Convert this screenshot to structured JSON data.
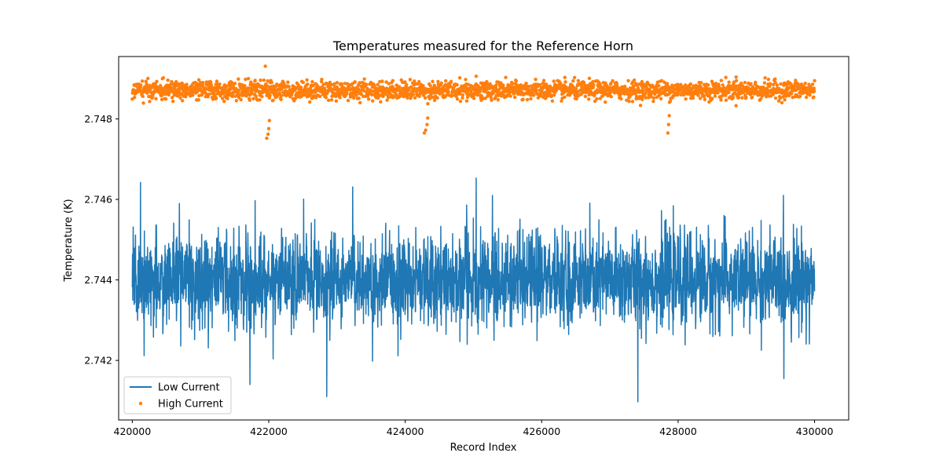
{
  "chart_data": {
    "type": "line",
    "title": "Temperatures measured for the Reference Horn",
    "xlabel": "Record Index",
    "ylabel": "Temperature (K)",
    "xlim": [
      419800,
      430500
    ],
    "ylim": [
      2.74052,
      2.74955
    ],
    "x_ticks": [
      420000,
      422000,
      424000,
      426000,
      428000,
      430000
    ],
    "x_tick_labels": [
      "420000",
      "422000",
      "424000",
      "426000",
      "428000",
      "430000"
    ],
    "y_ticks": [
      2.742,
      2.744,
      2.746,
      2.748
    ],
    "y_tick_labels": [
      "2.742",
      "2.744",
      "2.746",
      "2.748"
    ],
    "grid": false,
    "legend_position": "lower-left",
    "series": [
      {
        "name": "Low Current",
        "style": "line",
        "color": "#1f77b4",
        "x_start": 420000,
        "x_end": 430000,
        "mean": 2.744,
        "typical_min": 2.7428,
        "typical_max": 2.7454,
        "extreme_min": 2.741,
        "extreme_max": 2.7465,
        "notable_points": [
          {
            "x": 420120,
            "y": 2.74642
          },
          {
            "x": 421800,
            "y": 2.74597
          },
          {
            "x": 422850,
            "y": 2.7411
          },
          {
            "x": 423230,
            "y": 2.74631
          },
          {
            "x": 424900,
            "y": 2.74586
          },
          {
            "x": 425040,
            "y": 2.74653
          },
          {
            "x": 427410,
            "y": 2.74097
          },
          {
            "x": 429550,
            "y": 2.74155
          }
        ]
      },
      {
        "name": "High Current",
        "style": "scatter",
        "color": "#ff7f0e",
        "x_start": 420000,
        "x_end": 430000,
        "mean": 2.74871,
        "band_min": 2.74842,
        "band_max": 2.74893,
        "outliers": [
          {
            "x": 421950,
            "y": 2.74931
          },
          {
            "x": 421970,
            "y": 2.74752
          },
          {
            "x": 421990,
            "y": 2.74762
          },
          {
            "x": 422000,
            "y": 2.74776
          },
          {
            "x": 422010,
            "y": 2.74796
          },
          {
            "x": 424280,
            "y": 2.74765
          },
          {
            "x": 424300,
            "y": 2.74772
          },
          {
            "x": 424320,
            "y": 2.74786
          },
          {
            "x": 424330,
            "y": 2.74802
          },
          {
            "x": 427850,
            "y": 2.74765
          },
          {
            "x": 427860,
            "y": 2.74786
          },
          {
            "x": 427870,
            "y": 2.74808
          },
          {
            "x": 425040,
            "y": 2.74906
          },
          {
            "x": 424800,
            "y": 2.74902
          },
          {
            "x": 428850,
            "y": 2.74904
          }
        ]
      }
    ]
  }
}
